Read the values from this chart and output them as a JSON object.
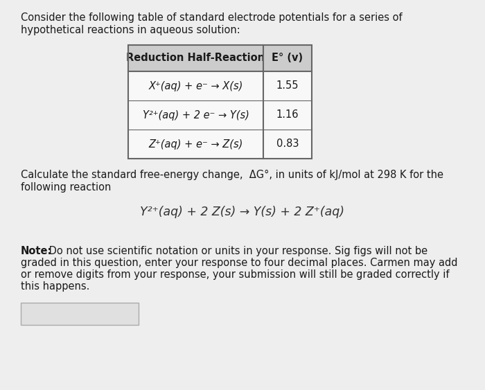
{
  "background_color": "#eeeeee",
  "table_header": [
    "Reduction Half-Reaction",
    "E° (v)"
  ],
  "table_rows": [
    [
      "X⁺(aq) + e⁻ → X(s)",
      "1.55"
    ],
    [
      "Y²⁺(aq) + 2 e⁻ → Y(s)",
      "1.16"
    ],
    [
      "Z⁺(aq) + e⁻ → Z(s)",
      "0.83"
    ]
  ],
  "intro_line1": "Consider the following table of standard electrode potentials for a series of",
  "intro_line2": "hypothetical reactions in aqueous solution:",
  "calc_line1": "Calculate the standard free-energy change,  ΔG°, in units of kJ/mol at 298 K for the",
  "calc_line2": "following reaction",
  "reaction_text": "Y²⁺(aq) + 2 Z(s) → Y(s) + 2 Z⁺(aq)",
  "note_bold": "Note:",
  "note_regular": " Do not use scientific notation or units in your response. Sig figs will not be\ngraded in this question, enter your response to four decimal places. Carmen may add\nor remove digits from your response, your submission will still be graded correctly if\nthis happens.",
  "font_size_body": 10.5,
  "font_size_table": 10.5,
  "font_size_reaction": 12.5,
  "table_header_bg": "#cccccc",
  "table_bg": "#f8f8f8",
  "table_border_color": "#666666",
  "answer_box_fill": "#e0e0e0",
  "answer_box_edge": "#aaaaaa"
}
